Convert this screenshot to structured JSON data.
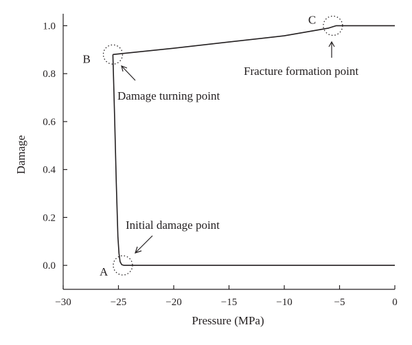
{
  "chart_data": {
    "type": "line",
    "title": "",
    "xlabel": "Pressure (MPa)",
    "ylabel": "Damage",
    "xlim": [
      -30,
      0
    ],
    "ylim": [
      -0.1,
      1.05
    ],
    "grid": false,
    "xticks": [
      -30,
      -25,
      -20,
      -15,
      -10,
      -5,
      0
    ],
    "xtick_labels": [
      "−30",
      "−25",
      "−20",
      "−15",
      "−10",
      "−5",
      "0"
    ],
    "yticks": [
      0.0,
      0.2,
      0.4,
      0.6,
      0.8,
      1.0
    ],
    "ytick_labels": [
      "0.0",
      "0.2",
      "0.4",
      "0.6",
      "0.8",
      "1.0"
    ],
    "series": [
      {
        "x": [
          -25.5,
          -25.35,
          -25.2,
          -25.05,
          -24.95,
          -24.85,
          -24.7,
          -24.5,
          -20,
          -10,
          0
        ],
        "y": [
          0.88,
          0.62,
          0.35,
          0.12,
          0.05,
          0.015,
          0.003,
          0.0,
          0.0,
          0.0,
          0.0
        ]
      },
      {
        "x": [
          -25.5,
          -20,
          -15,
          -10,
          -6.0,
          -5.3,
          -5.0,
          0
        ],
        "y": [
          0.88,
          0.906,
          0.932,
          0.958,
          0.99,
          1.0,
          1.0,
          1.0
        ]
      }
    ],
    "points": [
      {
        "letter": "A",
        "x": -24.6,
        "y": 0.0
      },
      {
        "letter": "B",
        "x": -25.5,
        "y": 0.88
      },
      {
        "letter": "C",
        "x": -5.6,
        "y": 1.0
      }
    ],
    "annotations": [
      {
        "text": "Initial damage point",
        "target": "A"
      },
      {
        "text": "Damage turning point",
        "target": "B"
      },
      {
        "text": "Fracture formation point",
        "target": "C"
      }
    ]
  }
}
